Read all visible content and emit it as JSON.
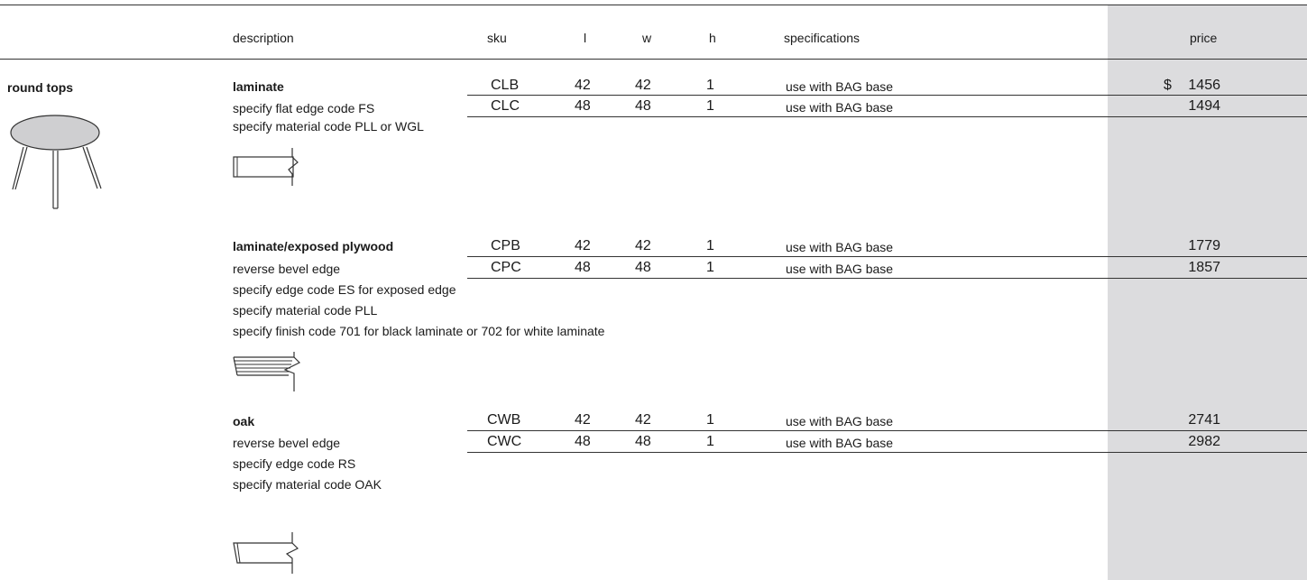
{
  "columns": {
    "description": "description",
    "sku": "sku",
    "l": "l",
    "w": "w",
    "h": "h",
    "specifications": "specifications",
    "price": "price"
  },
  "category": {
    "label": "round tops",
    "illustration": "round-table-icon"
  },
  "sections": [
    {
      "title": "laminate",
      "notes": [
        "specify flat edge code FS",
        "specify material code PLL or WGL"
      ],
      "edge_icon": "flat-edge-profile-icon",
      "rows": [
        {
          "sku": "CLB",
          "l": "42",
          "w": "42",
          "h": "1",
          "spec": "use with BAG base",
          "currency": "$",
          "price": "1456"
        },
        {
          "sku": "CLC",
          "l": "48",
          "w": "48",
          "h": "1",
          "spec": "use with BAG base",
          "currency": "",
          "price": "1494"
        }
      ]
    },
    {
      "title": "laminate/exposed plywood",
      "notes": [
        "reverse bevel edge",
        "specify edge code ES for exposed edge",
        "specify material code PLL",
        "specify finish code 701 for black laminate or 702 for white laminate"
      ],
      "edge_icon": "exposed-plywood-edge-profile-icon",
      "rows": [
        {
          "sku": "CPB",
          "l": "42",
          "w": "42",
          "h": "1",
          "spec": "use with BAG base",
          "currency": "",
          "price": "1779"
        },
        {
          "sku": "CPC",
          "l": "48",
          "w": "48",
          "h": "1",
          "spec": "use with BAG base",
          "currency": "",
          "price": "1857"
        }
      ]
    },
    {
      "title": "oak",
      "notes": [
        "reverse bevel edge",
        "specify edge code RS",
        "specify material code OAK"
      ],
      "edge_icon": "reverse-bevel-edge-profile-icon",
      "rows": [
        {
          "sku": "CWB",
          "l": "42",
          "w": "42",
          "h": "1",
          "spec": "use with BAG base",
          "currency": "",
          "price": "2741"
        },
        {
          "sku": "CWC",
          "l": "48",
          "w": "48",
          "h": "1",
          "spec": "use with BAG base",
          "currency": "",
          "price": "2982"
        }
      ]
    }
  ]
}
